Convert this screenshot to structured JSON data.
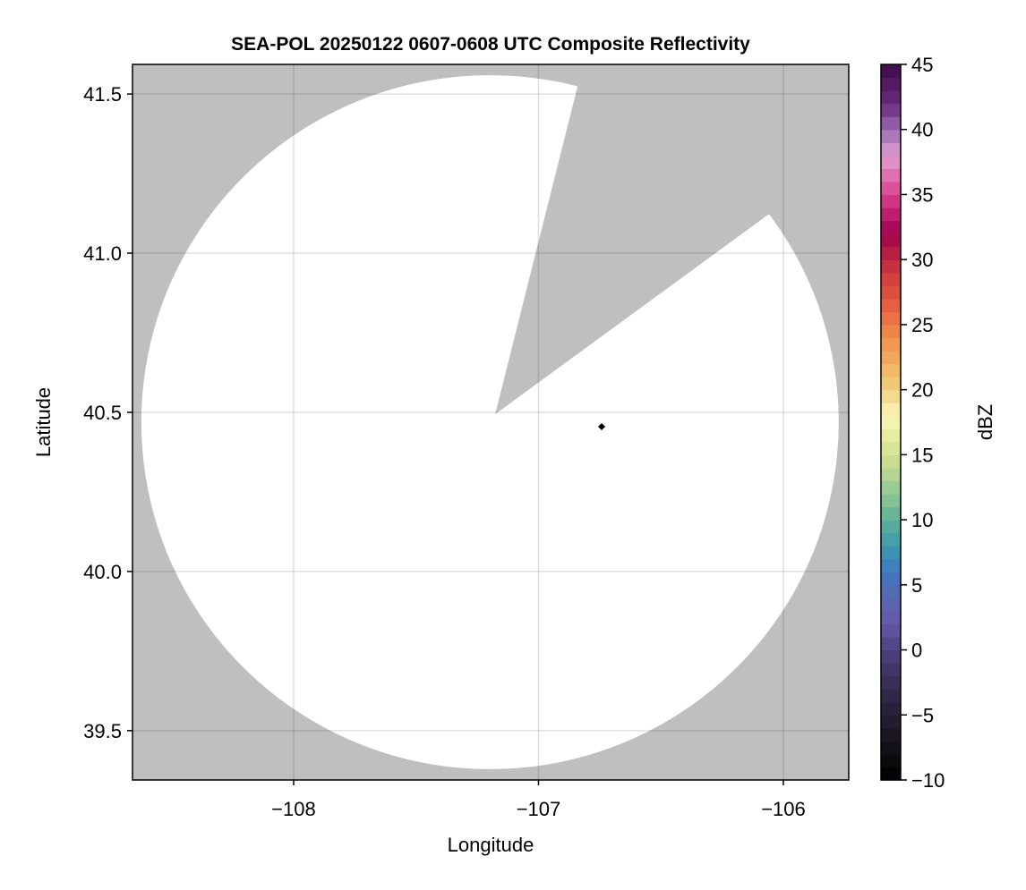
{
  "chart_data": {
    "type": "heatmap",
    "title": "SEA-POL 20250122 0607-0608 UTC Composite Reflectivity",
    "xlabel": "Longitude",
    "ylabel": "Latitude",
    "xlim": [
      -108.658,
      -105.733
    ],
    "ylim": [
      39.345,
      41.593
    ],
    "xticks": [
      -108,
      -107,
      -106
    ],
    "xtick_labels": [
      "−108",
      "−107",
      "−106"
    ],
    "yticks": [
      39.5,
      40.0,
      40.5,
      41.0,
      41.5
    ],
    "ytick_labels": [
      "39.5",
      "40.0",
      "40.5",
      "41.0",
      "41.5"
    ],
    "grid": true,
    "background_color": "#bfbfbf",
    "coverage_color": "#ffffff",
    "coverage": {
      "center_lon": -107.198,
      "center_lat": 40.469,
      "radius_lon": 1.424,
      "radius_lat": 1.09
    },
    "blocked_sector": {
      "apex": [
        -107.177,
        40.494
      ],
      "edge_left": [
        -106.841,
        41.522
      ],
      "edge_right": [
        -106.062,
        41.121
      ]
    },
    "marker": {
      "lon": -106.742,
      "lat": 40.455,
      "shape": "diamond",
      "color": "#000000"
    },
    "colorbar": {
      "label": "dBZ",
      "range": [
        -10,
        45
      ],
      "step": 1,
      "ticks": [
        -10,
        -5,
        0,
        5,
        10,
        15,
        20,
        25,
        30,
        35,
        40,
        45
      ],
      "tick_labels": [
        "−10",
        "−5",
        "0",
        "5",
        "10",
        "15",
        "20",
        "25",
        "30",
        "35",
        "40",
        "45"
      ],
      "colors": [
        [
          -10,
          "#000000"
        ],
        [
          -8,
          "#100c14"
        ],
        [
          -6,
          "#201828"
        ],
        [
          -4,
          "#2c2440"
        ],
        [
          -2,
          "#403060"
        ],
        [
          0,
          "#4c4080"
        ],
        [
          2,
          "#6858a8"
        ],
        [
          4,
          "#5868b0"
        ],
        [
          6,
          "#4078c0"
        ],
        [
          8,
          "#4098b0"
        ],
        [
          10,
          "#60b098"
        ],
        [
          12,
          "#90c898"
        ],
        [
          14,
          "#c0d890"
        ],
        [
          16,
          "#e0e898"
        ],
        [
          18,
          "#f8f8b8"
        ],
        [
          20,
          "#f0d080"
        ],
        [
          22,
          "#f0b060"
        ],
        [
          24,
          "#f09050"
        ],
        [
          26,
          "#e86840"
        ],
        [
          28,
          "#d84840"
        ],
        [
          30,
          "#c02840"
        ],
        [
          32,
          "#a00050"
        ],
        [
          34,
          "#c82878"
        ],
        [
          36,
          "#e060a8"
        ],
        [
          38,
          "#e0a0d0"
        ],
        [
          40,
          "#9b6bb3"
        ],
        [
          42,
          "#6b2a7e"
        ],
        [
          45,
          "#3d0a4a"
        ]
      ]
    }
  }
}
